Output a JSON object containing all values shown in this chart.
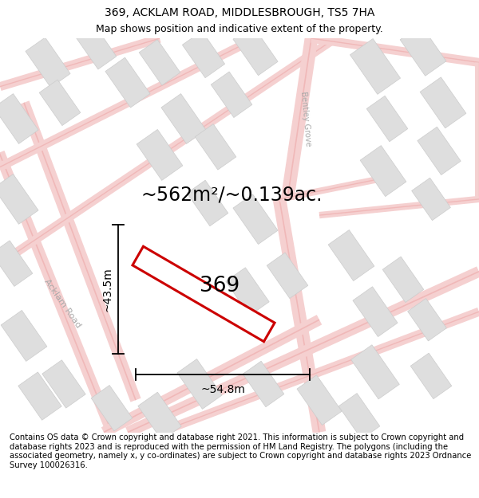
{
  "title_line1": "369, ACKLAM ROAD, MIDDLESBROUGH, TS5 7HA",
  "title_line2": "Map shows position and indicative extent of the property.",
  "area_text": "~562m²/~0.139ac.",
  "property_number": "369",
  "dim_width": "~54.8m",
  "dim_height": "~43.5m",
  "footer_text": "Contains OS data © Crown copyright and database right 2021. This information is subject to Crown copyright and database rights 2023 and is reproduced with the permission of HM Land Registry. The polygons (including the associated geometry, namely x, y co-ordinates) are subject to Crown copyright and database rights 2023 Ordnance Survey 100026316.",
  "map_bg": "#f9f6f6",
  "road_color": "#f0b8b8",
  "road_color2": "#f5d0d0",
  "building_color": "#dedede",
  "building_edge": "#cccccc",
  "property_outline": "#cc0000",
  "title_fontsize": 10,
  "subtitle_fontsize": 9,
  "area_fontsize": 17,
  "number_fontsize": 19,
  "dim_fontsize": 10,
  "footer_fontsize": 7.2
}
